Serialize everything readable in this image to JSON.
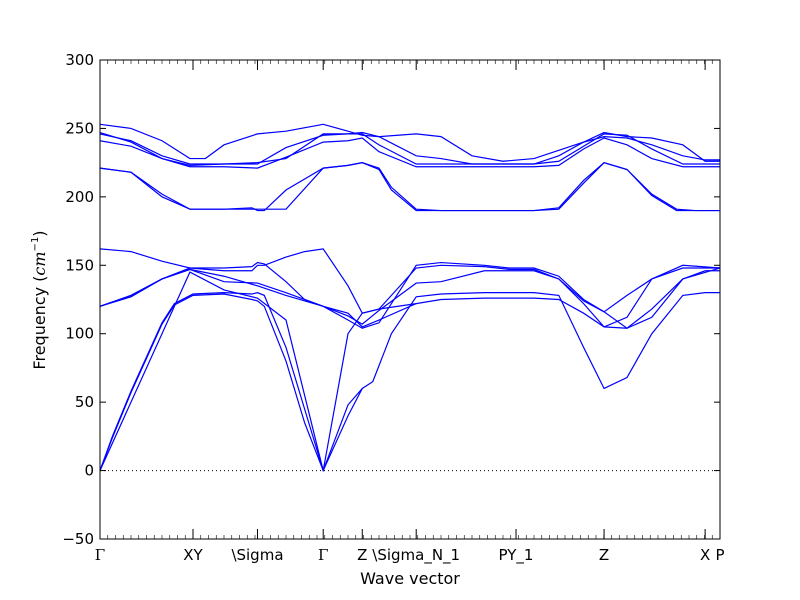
{
  "chart_data": {
    "type": "line",
    "title": "",
    "xlabel": "Wave vector",
    "ylabel_prefix": "Frequency (",
    "ylabel_unit": "cm",
    "ylabel_exp": "−1",
    "ylabel_suffix": ")",
    "ylim": [
      -50,
      300
    ],
    "yticks": [
      -50,
      0,
      50,
      100,
      150,
      200,
      250,
      300
    ],
    "xlim": [
      0,
      1
    ],
    "grid": false,
    "line_color": "#0000ff",
    "zero_line": {
      "y": 0,
      "style": "dotted",
      "color": "#000000"
    },
    "xticks": [
      {
        "pos": 0.0,
        "label": "Γ",
        "serif": true
      },
      {
        "pos": 0.15,
        "label": "XY"
      },
      {
        "pos": 0.254,
        "label": "\\Sigma"
      },
      {
        "pos": 0.36,
        "label": "Γ",
        "serif": true
      },
      {
        "pos": 0.423,
        "label": "Z"
      },
      {
        "pos": 0.51,
        "label": "\\Sigma_N_1"
      },
      {
        "pos": 0.671,
        "label": "PY_1"
      },
      {
        "pos": 0.813,
        "label": "Z"
      },
      {
        "pos": 0.976,
        "label": "X"
      },
      {
        "pos": 1.0,
        "label": "P"
      }
    ],
    "series": [
      {
        "x": [
          0,
          0.02,
          0.05,
          0.08,
          0.1,
          0.12,
          0.15,
          0.2,
          0.245,
          0.254,
          0.265,
          0.3,
          0.33,
          0.36,
          0.4,
          0.423
        ],
        "y": [
          0,
          25,
          58,
          88,
          108,
          122,
          129,
          130,
          129,
          130,
          128,
          90,
          45,
          0,
          40,
          60
        ]
      },
      {
        "x": [
          0,
          0.02,
          0.05,
          0.08,
          0.1,
          0.12,
          0.15,
          0.2,
          0.245,
          0.254,
          0.265,
          0.3,
          0.33,
          0.36
        ],
        "y": [
          0,
          24,
          57,
          87,
          107,
          121,
          128,
          129,
          125,
          124,
          120,
          80,
          35,
          0
        ]
      },
      {
        "x": [
          0,
          0.05,
          0.1,
          0.145,
          0.2,
          0.254,
          0.3,
          0.36
        ],
        "y": [
          0,
          50,
          100,
          145,
          132,
          126,
          110,
          0
        ]
      },
      {
        "x": [
          0.36,
          0.4,
          0.423,
          0.44,
          0.47,
          0.51,
          0.55,
          0.62,
          0.7,
          0.74,
          0.78,
          0.813,
          0.85,
          0.89,
          0.94,
          0.976,
          1.0
        ],
        "y": [
          0,
          48,
          60,
          65,
          100,
          127,
          129,
          130,
          130,
          128,
          90,
          60,
          68,
          100,
          128,
          130,
          130
        ]
      },
      {
        "x": [
          0.36,
          0.4,
          0.423,
          0.45,
          0.51
        ],
        "y": [
          0,
          100,
          115,
          118,
          122
        ]
      },
      {
        "x": [
          0,
          0.05,
          0.1,
          0.145,
          0.2,
          0.245,
          0.254,
          0.265,
          0.3,
          0.33,
          0.36,
          0.4,
          0.423,
          0.45,
          0.51,
          0.55,
          0.62,
          0.66,
          0.7,
          0.74,
          0.78,
          0.813,
          0.85,
          0.89,
          0.94,
          0.976,
          1.0
        ],
        "y": [
          162,
          160,
          153,
          148,
          148,
          149,
          152,
          151,
          138,
          125,
          120,
          110,
          104,
          108,
          150,
          152,
          150,
          148,
          148,
          142,
          125,
          116,
          128,
          140,
          148,
          148,
          148
        ]
      },
      {
        "x": [
          0,
          0.05,
          0.1,
          0.145,
          0.2,
          0.245,
          0.254,
          0.265,
          0.3,
          0.33,
          0.36,
          0.4,
          0.423,
          0.45,
          0.51,
          0.55,
          0.62,
          0.66,
          0.7,
          0.74,
          0.78,
          0.813,
          0.85,
          0.89,
          0.94,
          0.976,
          1.0
        ],
        "y": [
          120,
          127,
          140,
          148,
          146,
          146,
          150,
          150,
          156,
          160,
          162,
          135,
          115,
          118,
          148,
          150,
          149,
          147,
          147,
          140,
          124,
          116,
          104,
          112,
          140,
          146,
          146
        ]
      },
      {
        "x": [
          0,
          0.05,
          0.1,
          0.145,
          0.2,
          0.254,
          0.3,
          0.36,
          0.4,
          0.423,
          0.45,
          0.51,
          0.55,
          0.62,
          0.7,
          0.74,
          0.78,
          0.813,
          0.85,
          0.89,
          0.94,
          1.0
        ],
        "y": [
          120,
          128,
          140,
          147,
          138,
          137,
          130,
          120,
          115,
          105,
          110,
          122,
          125,
          126,
          126,
          125,
          115,
          105,
          104,
          118,
          140,
          148
        ]
      },
      {
        "x": [
          0,
          0.05,
          0.1,
          0.145,
          0.2,
          0.254,
          0.3,
          0.36,
          0.4,
          0.423,
          0.45,
          0.51,
          0.55,
          0.62,
          0.7,
          0.74,
          0.78,
          0.813,
          0.85,
          0.89,
          0.94,
          1.0
        ],
        "y": [
          120,
          128,
          140,
          147,
          142,
          135,
          128,
          120,
          113,
          107,
          117,
          137,
          138,
          146,
          146,
          140,
          122,
          105,
          112,
          140,
          150,
          148
        ]
      },
      {
        "x": [
          0,
          0.05,
          0.1,
          0.145,
          0.2,
          0.254,
          0.3,
          0.36,
          0.4,
          0.423,
          0.45,
          0.47,
          0.51,
          0.55,
          0.6,
          0.65,
          0.7,
          0.74,
          0.78,
          0.813,
          0.85,
          0.89,
          0.93,
          0.96,
          0.976,
          1.0
        ],
        "y": [
          221,
          218,
          200,
          191,
          191,
          191,
          191,
          221,
          223,
          225,
          220,
          205,
          190,
          190,
          190,
          190,
          190,
          191,
          210,
          225,
          220,
          201,
          190,
          190,
          190,
          190
        ]
      },
      {
        "x": [
          0,
          0.05,
          0.1,
          0.145,
          0.2,
          0.245,
          0.254,
          0.265,
          0.3,
          0.36,
          0.4,
          0.423,
          0.45,
          0.47,
          0.51,
          0.55,
          0.6,
          0.65,
          0.7,
          0.74,
          0.78,
          0.813,
          0.85,
          0.89,
          0.93,
          0.96,
          0.976,
          1.0
        ],
        "y": [
          221,
          218,
          202,
          191,
          191,
          192,
          190,
          190,
          205,
          221,
          223,
          225,
          221,
          207,
          191,
          190,
          190,
          190,
          190,
          192,
          212,
          225,
          220,
          202,
          191,
          190,
          190,
          190
        ]
      },
      {
        "x": [
          0,
          0.05,
          0.1,
          0.145,
          0.2,
          0.254,
          0.3,
          0.36,
          0.4,
          0.423,
          0.45,
          0.51,
          0.55,
          0.6,
          0.65,
          0.7,
          0.74,
          0.78,
          0.813,
          0.85,
          0.89,
          0.94,
          0.976,
          1.0
        ],
        "y": [
          247,
          240,
          228,
          222,
          222,
          221,
          229,
          240,
          241,
          243,
          233,
          222,
          222,
          222,
          222,
          222,
          223,
          235,
          243,
          238,
          228,
          222,
          222,
          222
        ]
      },
      {
        "x": [
          0,
          0.05,
          0.1,
          0.145,
          0.2,
          0.254,
          0.3,
          0.36,
          0.4,
          0.423,
          0.45,
          0.51,
          0.55,
          0.6,
          0.65,
          0.7,
          0.74,
          0.78,
          0.813,
          0.85,
          0.89,
          0.94,
          0.976,
          1.0
        ],
        "y": [
          246,
          241,
          230,
          224,
          224,
          224,
          236,
          245,
          246,
          246,
          238,
          224,
          224,
          224,
          224,
          224,
          226,
          237,
          246,
          245,
          235,
          224,
          224,
          224
        ]
      },
      {
        "x": [
          0,
          0.05,
          0.1,
          0.145,
          0.2,
          0.254,
          0.3,
          0.36,
          0.4,
          0.423,
          0.45,
          0.51,
          0.55,
          0.6,
          0.65,
          0.7,
          0.74,
          0.78,
          0.813,
          0.85,
          0.89,
          0.94,
          0.976,
          1.0
        ],
        "y": [
          241,
          237,
          228,
          223,
          224,
          225,
          228,
          246,
          246,
          247,
          244,
          230,
          228,
          224,
          224,
          224,
          230,
          240,
          244,
          243,
          238,
          230,
          227,
          227
        ]
      },
      {
        "x": [
          0,
          0.05,
          0.1,
          0.145,
          0.17,
          0.2,
          0.254,
          0.3,
          0.36,
          0.4,
          0.423,
          0.45,
          0.51,
          0.55,
          0.6,
          0.65,
          0.7,
          0.74,
          0.78,
          0.813,
          0.85,
          0.89,
          0.94,
          0.976,
          1.0
        ],
        "y": [
          253,
          250,
          241,
          228,
          228,
          238,
          246,
          248,
          253,
          248,
          245,
          244,
          246,
          244,
          230,
          226,
          228,
          234,
          240,
          247,
          244,
          243,
          238,
          226,
          226
        ]
      }
    ]
  }
}
